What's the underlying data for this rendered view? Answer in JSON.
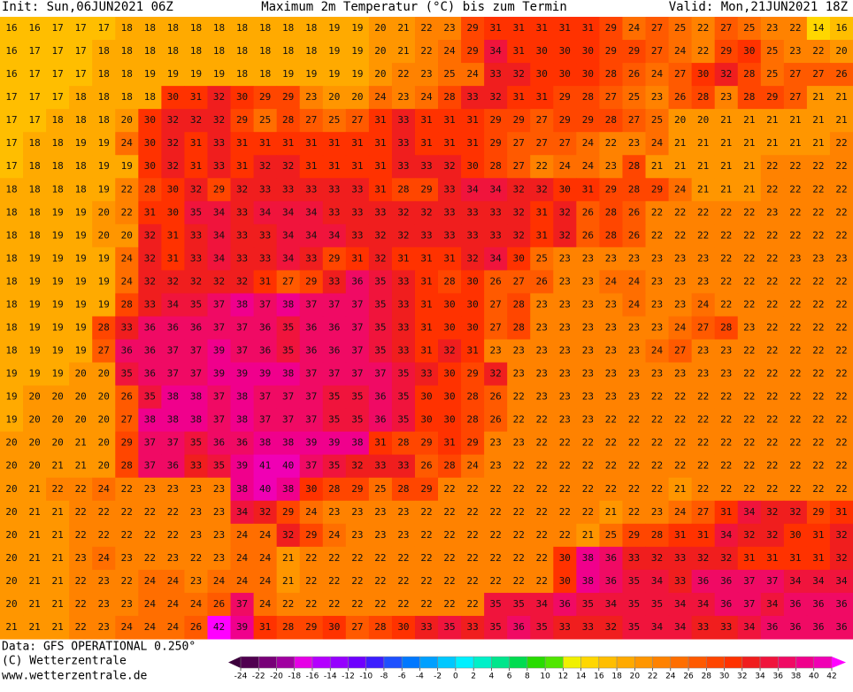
{
  "header": {
    "init": "Init: Sun,06JUN2021 06Z",
    "title": "Maximum 2m Temperatur (°C) bis zum Termin",
    "valid": "Valid: Mon,21JUN2021 18Z"
  },
  "footer": {
    "data": "Data: GFS OPERATIONAL 0.250°",
    "copyright": "(C) Wetterzentrale",
    "url": "www.wetterzentrale.de"
  },
  "grid": {
    "rows": [
      [
        16,
        16,
        17,
        17,
        17,
        18,
        18,
        18,
        18,
        18,
        18,
        18,
        18,
        18,
        19,
        19,
        20,
        21,
        22,
        23,
        29,
        31,
        31,
        31,
        31,
        31,
        29,
        24,
        27,
        25,
        22,
        27,
        25,
        23,
        22,
        14,
        16
      ],
      [
        16,
        17,
        17,
        17,
        18,
        18,
        18,
        18,
        18,
        18,
        18,
        18,
        18,
        18,
        19,
        19,
        20,
        21,
        22,
        24,
        29,
        34,
        31,
        30,
        30,
        30,
        29,
        29,
        27,
        24,
        22,
        29,
        30,
        25,
        23,
        22,
        20
      ],
      [
        16,
        17,
        17,
        17,
        18,
        18,
        19,
        19,
        19,
        19,
        18,
        18,
        19,
        19,
        19,
        19,
        20,
        22,
        23,
        25,
        24,
        33,
        32,
        30,
        30,
        30,
        28,
        26,
        24,
        27,
        30,
        32,
        28,
        25,
        27,
        27,
        26
      ],
      [
        17,
        17,
        17,
        18,
        18,
        18,
        18,
        30,
        31,
        32,
        30,
        29,
        29,
        23,
        20,
        20,
        24,
        23,
        24,
        28,
        33,
        32,
        31,
        31,
        29,
        28,
        27,
        25,
        23,
        26,
        28,
        23,
        28,
        29,
        27,
        21,
        21
      ],
      [
        17,
        17,
        18,
        18,
        18,
        20,
        30,
        32,
        32,
        32,
        29,
        25,
        28,
        27,
        25,
        27,
        31,
        33,
        31,
        31,
        31,
        29,
        29,
        27,
        29,
        29,
        28,
        27,
        25,
        20,
        20,
        21,
        21,
        21,
        21,
        21,
        21
      ],
      [
        17,
        18,
        18,
        19,
        19,
        24,
        30,
        32,
        31,
        33,
        31,
        31,
        31,
        31,
        31,
        31,
        31,
        33,
        31,
        31,
        31,
        29,
        27,
        27,
        27,
        24,
        22,
        23,
        24,
        21,
        21,
        21,
        21,
        21,
        21,
        21,
        22
      ],
      [
        17,
        18,
        18,
        18,
        19,
        19,
        30,
        32,
        31,
        33,
        31,
        32,
        32,
        31,
        31,
        31,
        31,
        33,
        33,
        32,
        30,
        28,
        27,
        22,
        24,
        24,
        23,
        28,
        21,
        21,
        21,
        21,
        21,
        22,
        22,
        22,
        22
      ],
      [
        18,
        18,
        18,
        18,
        19,
        22,
        28,
        30,
        32,
        29,
        32,
        33,
        33,
        33,
        33,
        33,
        31,
        28,
        29,
        33,
        34,
        34,
        32,
        32,
        30,
        31,
        29,
        28,
        29,
        24,
        21,
        21,
        21,
        22,
        22,
        22,
        22
      ],
      [
        18,
        18,
        19,
        19,
        20,
        22,
        31,
        30,
        35,
        34,
        33,
        34,
        34,
        34,
        33,
        33,
        33,
        32,
        32,
        33,
        33,
        33,
        32,
        31,
        32,
        26,
        28,
        26,
        22,
        22,
        22,
        22,
        22,
        23,
        22,
        22,
        22
      ],
      [
        18,
        18,
        19,
        19,
        20,
        20,
        32,
        31,
        33,
        34,
        33,
        33,
        34,
        34,
        34,
        33,
        32,
        32,
        33,
        33,
        33,
        33,
        32,
        31,
        32,
        26,
        28,
        26,
        22,
        22,
        22,
        22,
        22,
        22,
        22,
        22,
        22
      ],
      [
        18,
        19,
        19,
        19,
        19,
        24,
        32,
        31,
        33,
        34,
        33,
        33,
        34,
        33,
        29,
        31,
        32,
        31,
        31,
        31,
        32,
        34,
        30,
        25,
        23,
        23,
        23,
        23,
        23,
        23,
        23,
        22,
        22,
        22,
        23,
        23,
        23
      ],
      [
        18,
        19,
        19,
        19,
        19,
        24,
        32,
        32,
        32,
        32,
        32,
        31,
        27,
        29,
        33,
        36,
        35,
        33,
        31,
        28,
        30,
        26,
        27,
        26,
        23,
        23,
        24,
        24,
        23,
        23,
        23,
        22,
        22,
        22,
        22,
        22,
        22
      ],
      [
        18,
        19,
        19,
        19,
        19,
        28,
        33,
        34,
        35,
        37,
        38,
        37,
        38,
        37,
        37,
        37,
        35,
        33,
        31,
        30,
        30,
        27,
        28,
        23,
        23,
        23,
        23,
        24,
        23,
        23,
        24,
        22,
        22,
        22,
        22,
        22,
        22
      ],
      [
        18,
        19,
        19,
        19,
        28,
        33,
        36,
        36,
        36,
        37,
        37,
        36,
        35,
        36,
        36,
        37,
        35,
        33,
        31,
        30,
        30,
        27,
        28,
        23,
        23,
        23,
        23,
        23,
        23,
        24,
        27,
        28,
        23,
        22,
        22,
        22,
        22
      ],
      [
        18,
        19,
        19,
        19,
        27,
        36,
        36,
        37,
        37,
        39,
        37,
        36,
        35,
        36,
        36,
        37,
        35,
        33,
        31,
        32,
        31,
        23,
        23,
        23,
        23,
        23,
        23,
        23,
        24,
        27,
        23,
        23,
        22,
        22,
        22,
        22,
        22
      ],
      [
        19,
        19,
        19,
        20,
        20,
        35,
        36,
        37,
        37,
        39,
        39,
        39,
        38,
        37,
        37,
        37,
        37,
        35,
        33,
        30,
        29,
        32,
        23,
        23,
        23,
        23,
        23,
        23,
        23,
        23,
        23,
        23,
        22,
        22,
        22,
        22,
        22
      ],
      [
        19,
        20,
        20,
        20,
        20,
        26,
        35,
        38,
        38,
        37,
        38,
        37,
        37,
        37,
        35,
        35,
        36,
        35,
        30,
        30,
        28,
        26,
        22,
        23,
        23,
        23,
        23,
        23,
        22,
        22,
        22,
        22,
        22,
        22,
        22,
        22,
        22
      ],
      [
        19,
        20,
        20,
        20,
        20,
        27,
        38,
        38,
        38,
        37,
        38,
        37,
        37,
        37,
        35,
        35,
        36,
        35,
        30,
        30,
        28,
        26,
        22,
        22,
        23,
        23,
        22,
        22,
        22,
        22,
        22,
        22,
        22,
        22,
        22,
        22,
        22
      ],
      [
        20,
        20,
        20,
        21,
        20,
        29,
        37,
        37,
        35,
        36,
        36,
        38,
        38,
        39,
        39,
        38,
        31,
        28,
        29,
        31,
        29,
        23,
        23,
        22,
        22,
        22,
        22,
        22,
        22,
        22,
        22,
        22,
        22,
        22,
        22,
        22,
        22
      ],
      [
        20,
        20,
        21,
        21,
        20,
        28,
        37,
        36,
        33,
        35,
        39,
        41,
        40,
        37,
        35,
        32,
        33,
        33,
        26,
        28,
        24,
        23,
        22,
        22,
        22,
        22,
        22,
        22,
        22,
        22,
        22,
        22,
        22,
        22,
        22,
        22,
        22
      ],
      [
        20,
        21,
        22,
        22,
        24,
        22,
        23,
        23,
        23,
        23,
        38,
        40,
        38,
        30,
        28,
        29,
        25,
        28,
        29,
        22,
        22,
        22,
        22,
        22,
        22,
        22,
        22,
        22,
        22,
        21,
        22,
        22,
        22,
        22,
        22,
        22,
        22
      ],
      [
        20,
        21,
        21,
        22,
        22,
        22,
        22,
        22,
        23,
        23,
        34,
        32,
        29,
        24,
        23,
        23,
        23,
        23,
        22,
        22,
        22,
        22,
        22,
        22,
        22,
        22,
        21,
        22,
        23,
        24,
        27,
        31,
        34,
        32,
        32,
        29,
        31
      ],
      [
        20,
        21,
        21,
        22,
        22,
        22,
        22,
        22,
        23,
        23,
        24,
        24,
        32,
        29,
        24,
        23,
        23,
        23,
        22,
        22,
        22,
        22,
        22,
        22,
        22,
        21,
        25,
        29,
        28,
        31,
        31,
        34,
        32,
        32,
        30,
        31,
        32
      ],
      [
        20,
        21,
        21,
        23,
        24,
        23,
        22,
        23,
        22,
        23,
        24,
        24,
        21,
        22,
        22,
        22,
        22,
        22,
        22,
        22,
        22,
        22,
        22,
        22,
        30,
        38,
        36,
        33,
        32,
        33,
        32,
        32,
        31,
        31,
        31,
        31,
        32
      ],
      [
        20,
        21,
        21,
        22,
        23,
        22,
        24,
        24,
        23,
        24,
        24,
        24,
        21,
        22,
        22,
        22,
        22,
        22,
        22,
        22,
        22,
        22,
        22,
        22,
        30,
        38,
        36,
        35,
        34,
        33,
        36,
        36,
        37,
        37,
        34,
        34,
        34
      ],
      [
        20,
        21,
        21,
        22,
        23,
        23,
        24,
        24,
        24,
        26,
        37,
        24,
        22,
        22,
        22,
        22,
        22,
        22,
        22,
        22,
        22,
        35,
        35,
        34,
        36,
        35,
        34,
        35,
        35,
        34,
        34,
        36,
        37,
        34,
        36,
        36,
        36
      ],
      [
        21,
        21,
        21,
        22,
        23,
        24,
        24,
        24,
        26,
        42,
        39,
        31,
        28,
        29,
        30,
        27,
        28,
        30,
        33,
        35,
        33,
        35,
        36,
        35,
        33,
        33,
        32,
        35,
        34,
        34,
        33,
        33,
        34,
        36,
        36,
        36,
        36
      ]
    ]
  },
  "colorbar": {
    "ticks": [
      -24,
      -22,
      -20,
      -18,
      -16,
      -14,
      -12,
      -10,
      -8,
      -6,
      -4,
      -2,
      0,
      2,
      4,
      6,
      8,
      10,
      12,
      14,
      16,
      18,
      20,
      22,
      24,
      26,
      28,
      30,
      32,
      34,
      36,
      38,
      40,
      42
    ],
    "colors": [
      "#500050",
      "#780078",
      "#a000a0",
      "#e600e6",
      "#b400ff",
      "#9600ff",
      "#6e00ff",
      "#3c1eff",
      "#1e50ff",
      "#0078ff",
      "#00a0ff",
      "#00c8ff",
      "#00f0ff",
      "#00f0c8",
      "#00e68c",
      "#00dc50",
      "#28dc00",
      "#50e600",
      "#f0f000",
      "#ffd700",
      "#ffbe00",
      "#ffaa00",
      "#ff9600",
      "#ff8200",
      "#ff6e00",
      "#ff5a00",
      "#ff4600",
      "#ff3200",
      "#f01e1e",
      "#f0143c",
      "#f00a64",
      "#f0008c",
      "#f000b4"
    ],
    "below_color": "#3c003c",
    "above_color": "#ff00ff"
  }
}
